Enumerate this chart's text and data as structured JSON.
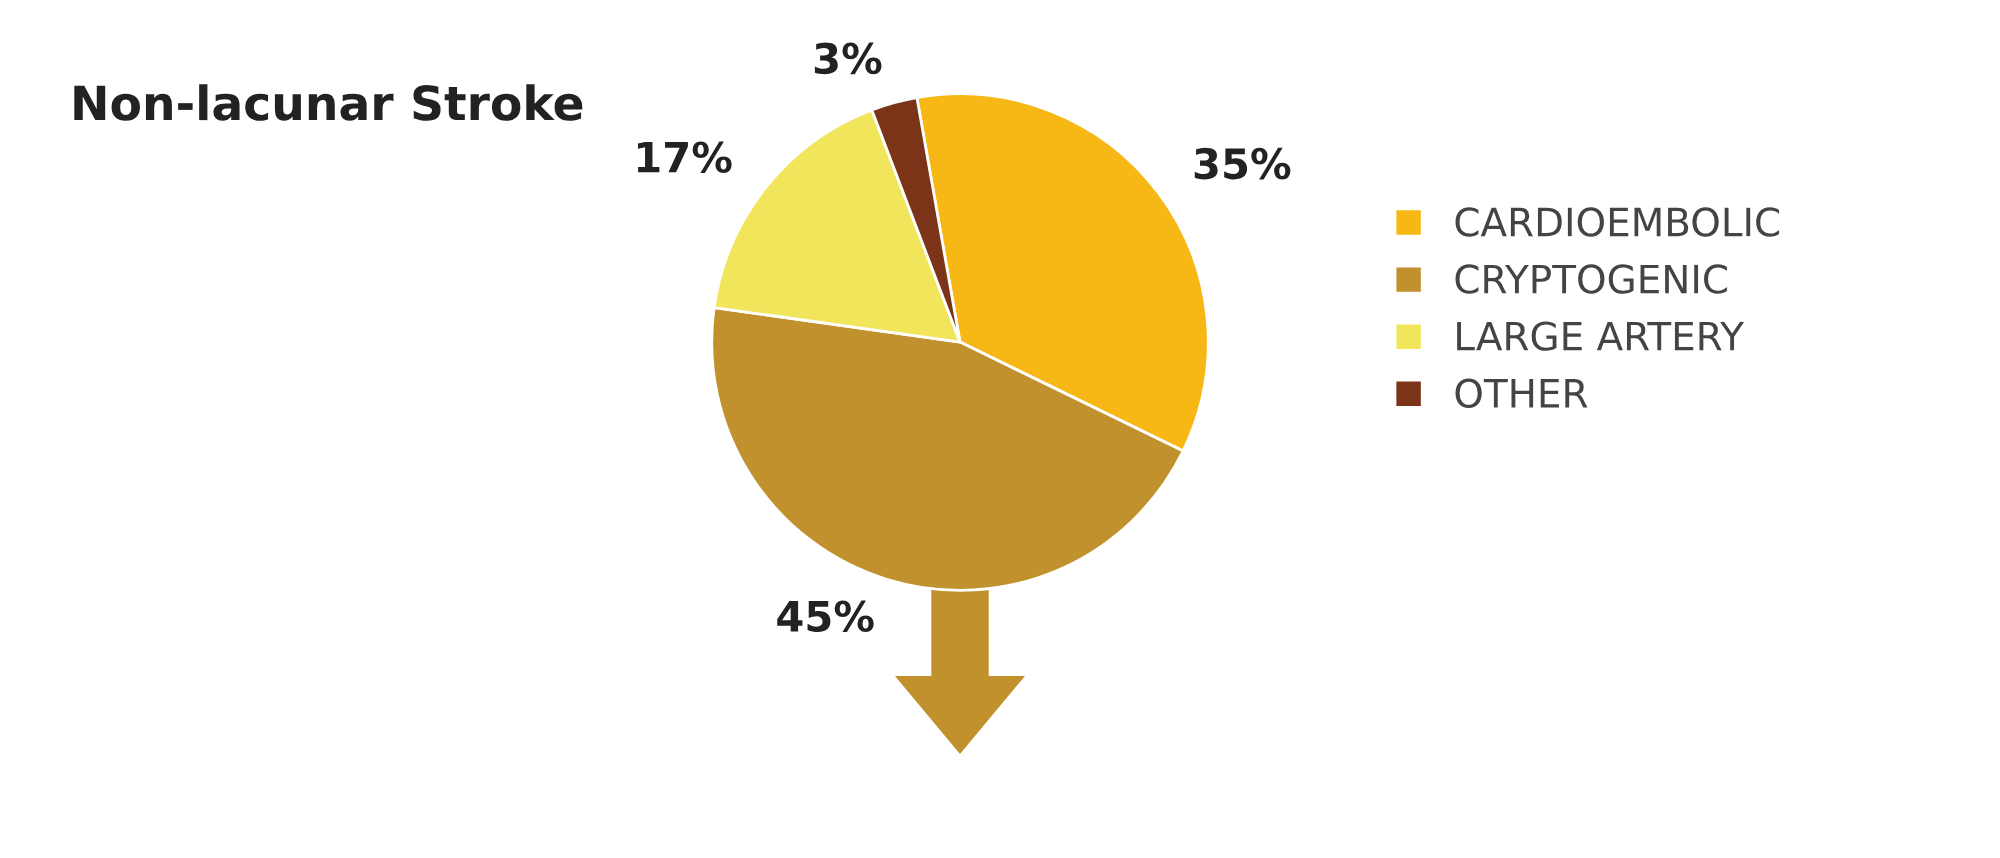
{
  "chart_data": {
    "type": "pie",
    "title": "Non-lacunar Stroke",
    "categories": [
      "CARDIOEMBOLIC",
      "CRYPTOGENIC",
      "LARGE ARTERY",
      "OTHER"
    ],
    "values": [
      35,
      45,
      17,
      3
    ],
    "value_labels": [
      "35%",
      "45%",
      "17%",
      "3%"
    ],
    "colors": [
      "#f7b715",
      "#c0912d",
      "#f1e65b",
      "#7b3417"
    ],
    "legend": "right"
  }
}
